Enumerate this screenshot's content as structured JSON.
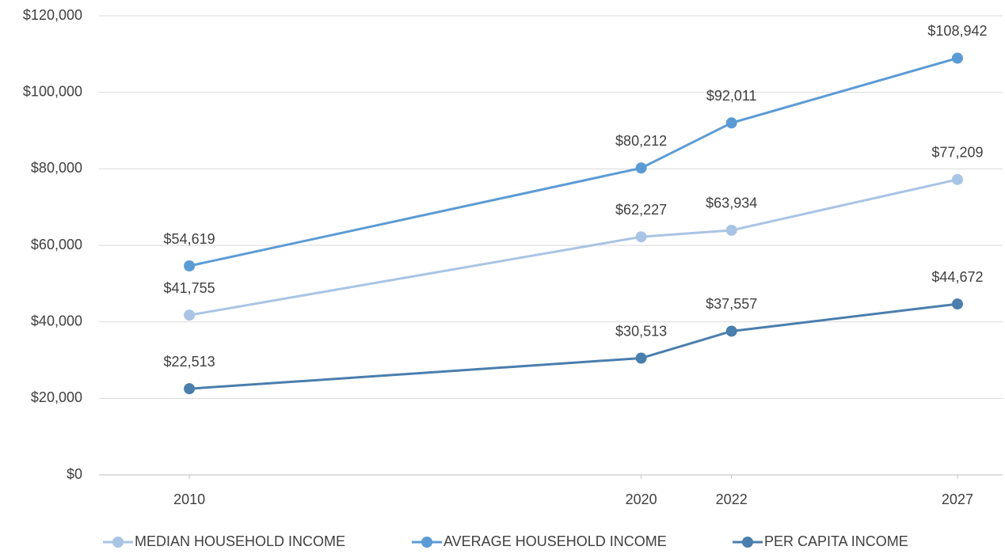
{
  "chart_data": {
    "type": "line",
    "x": [
      2010,
      2020,
      2022,
      2027
    ],
    "xlim": [
      2008,
      2028
    ],
    "xticks": [
      2010,
      2020,
      2022,
      2027
    ],
    "ylim": [
      0,
      120000
    ],
    "yticks": [
      {
        "value": 0,
        "label": "$0"
      },
      {
        "value": 20000,
        "label": "$20,000"
      },
      {
        "value": 40000,
        "label": "$40,000"
      },
      {
        "value": 60000,
        "label": "$60,000"
      },
      {
        "value": 80000,
        "label": "$80,000"
      },
      {
        "value": 100000,
        "label": "$100,000"
      },
      {
        "value": 120000,
        "label": "$120,000"
      }
    ],
    "grid": true,
    "legend": "bottom",
    "series": [
      {
        "name": "MEDIAN HOUSEHOLD INCOME",
        "color": "#a9c4e4",
        "values": [
          41755,
          62227,
          63934,
          77209
        ],
        "value_labels": [
          "$41,755",
          "$62,227",
          "$63,934",
          "$77,209"
        ]
      },
      {
        "name": "AVERAGE HOUSEHOLD INCOME",
        "color": "#5b9bd5",
        "values": [
          54619,
          80212,
          92011,
          108942
        ],
        "value_labels": [
          "$54,619",
          "$80,212",
          "$92,011",
          "$108,942"
        ]
      },
      {
        "name": "PER CAPITA INCOME",
        "color": "#4a7ead",
        "values": [
          22513,
          30513,
          37557,
          44672
        ],
        "value_labels": [
          "$22,513",
          "$30,513",
          "$37,557",
          "$44,672"
        ]
      }
    ]
  }
}
